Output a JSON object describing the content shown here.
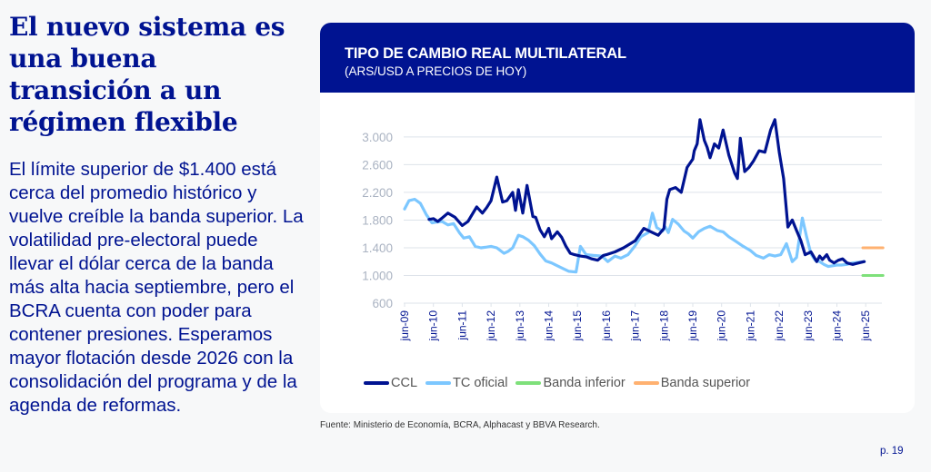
{
  "left": {
    "title": "El nuevo sistema es una buena transición a un régimen flexible",
    "body": "El límite superior de $1.400 está cerca del promedio histórico y vuelve creíble la banda superior. La volatilidad pre-electoral puede llevar el dólar cerca de la banda más alta hacia septiembre, pero el BCRA cuenta con poder para contener presiones. Esperamos mayor flotación desde 2026 con la consolidación del programa y de la agenda de reformas."
  },
  "card": {
    "title": "TIPO DE CAMBIO REAL MULTILATERAL",
    "subtitle": "(ARS/USD A PRECIOS DE HOY)"
  },
  "source": "Fuente: Ministerio de Economía, BCRA, Alphacast y BBVA Research.",
  "page": "p. 19",
  "chart_data": {
    "type": "line",
    "title": "TIPO DE CAMBIO REAL MULTILATERAL",
    "subtitle": "(ARS/USD A PRECIOS DE HOY)",
    "xlabel": "",
    "ylabel": "",
    "ylim": [
      600,
      3000
    ],
    "yticks": [
      600,
      1000,
      1400,
      1800,
      2200,
      2600,
      3000
    ],
    "ytick_labels": [
      "600",
      "1.000",
      "1.400",
      "1.800",
      "2.200",
      "2.600",
      "3.000"
    ],
    "xticks": [
      "jun-09",
      "jun-10",
      "jun-11",
      "jun-12",
      "jun-13",
      "jun-14",
      "jun-15",
      "jun-16",
      "jun-17",
      "jun-18",
      "jun-19",
      "jun-20",
      "jun-21",
      "jun-22",
      "jun-23",
      "jun-24",
      "jun-25"
    ],
    "x_unit": "years since jun-09",
    "grid": "horizontal",
    "legend": "bottom",
    "series": [
      {
        "name": "CCL",
        "color": "#001391",
        "x": [
          0.85,
          1.0,
          1.15,
          1.3,
          1.5,
          1.75,
          2.0,
          2.2,
          2.5,
          2.7,
          2.85,
          3.0,
          3.2,
          3.4,
          3.55,
          3.75,
          3.85,
          3.95,
          4.1,
          4.25,
          4.45,
          4.55,
          4.7,
          4.85,
          5.0,
          5.1,
          5.3,
          5.45,
          5.6,
          5.75,
          5.9,
          6.1,
          6.3,
          6.5,
          6.7,
          6.9,
          7.0,
          7.3,
          7.6,
          8.0,
          8.3,
          8.6,
          8.8,
          9.0,
          9.1,
          9.2,
          9.4,
          9.6,
          9.8,
          10.0,
          10.05,
          10.15,
          10.25,
          10.4,
          10.5,
          10.6,
          10.75,
          10.9,
          11.05,
          11.25,
          11.45,
          11.55,
          11.65,
          11.8,
          11.95,
          12.1,
          12.3,
          12.5,
          12.7,
          12.85,
          13.0,
          13.15,
          13.3,
          13.45,
          13.6,
          13.75,
          13.9,
          14.1,
          14.3,
          14.4,
          14.5,
          14.65,
          14.75,
          14.9,
          15.05,
          15.2,
          15.35,
          15.55,
          15.75,
          15.95
        ],
        "y": [
          1810,
          1820,
          1780,
          1830,
          1900,
          1840,
          1720,
          1780,
          1990,
          1900,
          1980,
          2080,
          2420,
          2060,
          2080,
          2200,
          1940,
          2240,
          1900,
          2300,
          1850,
          1840,
          1660,
          1560,
          1680,
          1530,
          1630,
          1550,
          1420,
          1320,
          1300,
          1280,
          1270,
          1240,
          1220,
          1290,
          1300,
          1340,
          1400,
          1500,
          1680,
          1620,
          1580,
          1680,
          2100,
          2240,
          2270,
          2200,
          2560,
          2680,
          2800,
          2900,
          3250,
          2950,
          2850,
          2700,
          2900,
          2840,
          3100,
          2740,
          2480,
          2400,
          2980,
          2500,
          2560,
          2650,
          2800,
          2780,
          3100,
          3250,
          2780,
          2400,
          1700,
          1800,
          1650,
          1500,
          1300,
          1340,
          1200,
          1280,
          1230,
          1300,
          1220,
          1180,
          1220,
          1240,
          1180,
          1160,
          1180,
          1200
        ]
      },
      {
        "name": "TC oficial",
        "color": "#7cc7ff",
        "x": [
          0.0,
          0.15,
          0.35,
          0.55,
          0.75,
          0.95,
          1.1,
          1.3,
          1.5,
          1.7,
          1.9,
          2.05,
          2.25,
          2.45,
          2.65,
          2.85,
          3.0,
          3.2,
          3.45,
          3.6,
          3.75,
          3.95,
          4.1,
          4.3,
          4.5,
          4.7,
          4.9,
          5.1,
          5.3,
          5.5,
          5.7,
          5.95,
          6.1,
          6.3,
          6.55,
          6.85,
          7.05,
          7.3,
          7.5,
          7.75,
          8.0,
          8.2,
          8.45,
          8.6,
          8.75,
          8.95,
          9.05,
          9.15,
          9.3,
          9.5,
          9.7,
          9.85,
          10.0,
          10.2,
          10.4,
          10.6,
          10.85,
          11.05,
          11.25,
          11.5,
          11.75,
          12.0,
          12.2,
          12.45,
          12.65,
          12.85,
          13.05,
          13.25,
          13.45,
          13.6,
          13.8,
          13.95,
          14.1,
          14.25,
          14.4,
          14.55,
          14.7,
          14.85,
          15.0,
          15.15,
          15.35,
          15.55,
          15.75,
          15.95
        ],
        "y": [
          1960,
          2080,
          2100,
          2040,
          1880,
          1760,
          1770,
          1780,
          1730,
          1750,
          1620,
          1540,
          1560,
          1420,
          1400,
          1410,
          1420,
          1400,
          1320,
          1350,
          1400,
          1580,
          1560,
          1510,
          1430,
          1310,
          1210,
          1180,
          1140,
          1100,
          1060,
          1050,
          1420,
          1300,
          1290,
          1280,
          1200,
          1280,
          1250,
          1300,
          1430,
          1560,
          1620,
          1900,
          1690,
          1640,
          1700,
          1620,
          1810,
          1740,
          1640,
          1600,
          1540,
          1630,
          1680,
          1710,
          1650,
          1630,
          1560,
          1490,
          1420,
          1360,
          1290,
          1250,
          1300,
          1280,
          1300,
          1460,
          1200,
          1260,
          1830,
          1560,
          1310,
          1220,
          1200,
          1160,
          1130,
          1140,
          1150,
          1150,
          1160,
          1180,
          1190,
          1200
        ]
      },
      {
        "name": "Banda inferior",
        "color": "#7ee07a",
        "x": [
          15.9,
          16.6
        ],
        "y": [
          1000,
          1000
        ]
      },
      {
        "name": "Banda superior",
        "color": "#ffb170",
        "x": [
          15.9,
          16.6
        ],
        "y": [
          1400,
          1400
        ]
      }
    ]
  }
}
